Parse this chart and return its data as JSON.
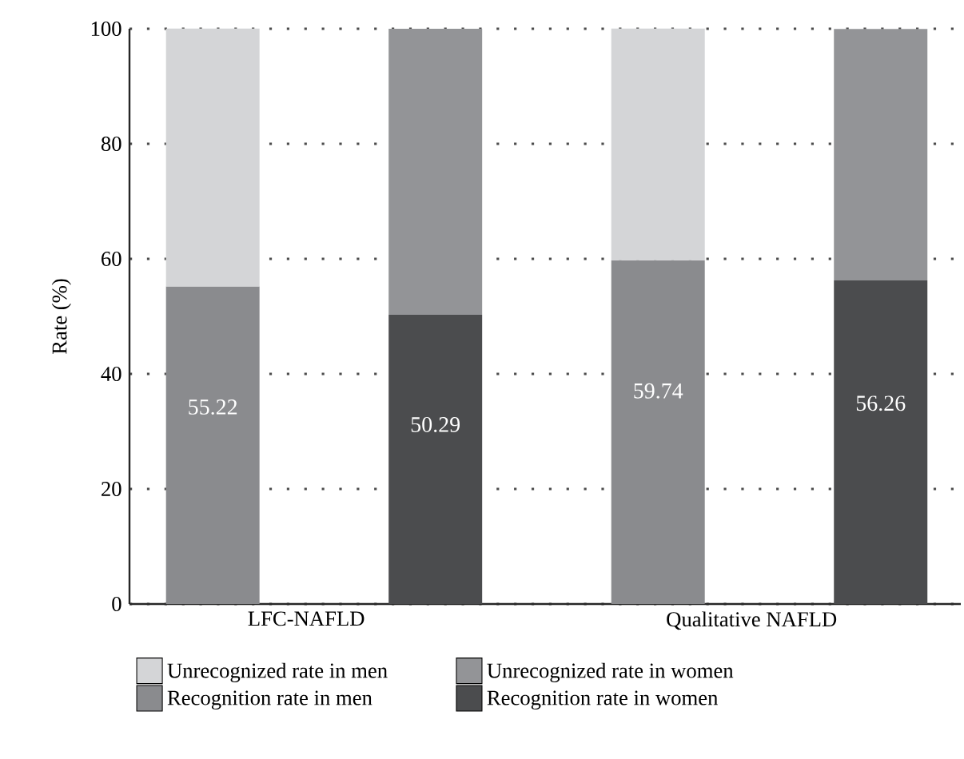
{
  "chart_data": {
    "type": "bar",
    "stacked": true,
    "ylabel": "Rate (%)",
    "categories": [
      "LFC-NAFLD",
      null,
      "Qualitative NAFLD",
      null
    ],
    "series": [
      {
        "name": "Recognition rate in men",
        "color": "#8a8b8e",
        "values": [
          55.22,
          null,
          59.74,
          null
        ],
        "value_labels": [
          "55.22",
          null,
          "59.74",
          null
        ]
      },
      {
        "name": "Unrecognized rate in men",
        "color": "#d4d5d7",
        "values": [
          44.8,
          null,
          40.3,
          null
        ]
      },
      {
        "name": "Recognition rate in women",
        "color": "#4b4c4e",
        "values": [
          null,
          50.29,
          null,
          56.26
        ],
        "value_labels": [
          null,
          "50.29",
          null,
          "56.26"
        ]
      },
      {
        "name": "Unrecognized rate in women",
        "color": "#939497",
        "values": [
          null,
          49.7,
          null,
          43.7
        ]
      }
    ],
    "ylim": [
      0,
      100
    ],
    "yticks": [
      0,
      20,
      40,
      60,
      80,
      100
    ],
    "grid": "y",
    "legend": "bottom"
  }
}
